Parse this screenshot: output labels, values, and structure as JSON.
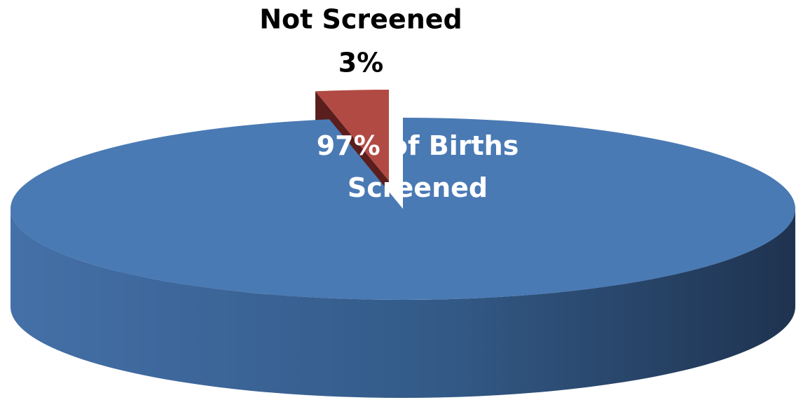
{
  "chart_data": {
    "type": "pie",
    "categories": [
      null,
      "Not Screened"
    ],
    "values": [
      97,
      3
    ],
    "value_labels": [
      "97% of Births Screened",
      "3%"
    ],
    "colors": [
      "#4a7ab4",
      "#b24a44"
    ],
    "explode": [
      false,
      true
    ],
    "start": "top",
    "direction": "clockwise",
    "three_d": true
  }
}
